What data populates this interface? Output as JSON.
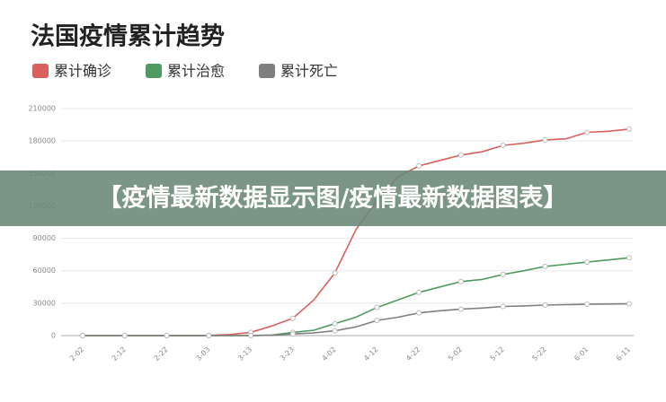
{
  "chart_data": {
    "type": "line",
    "title": "法国疫情累计趋势",
    "categories": [
      "2-02",
      null,
      "2-12",
      null,
      "2-22",
      null,
      "3-03",
      null,
      "3-13",
      null,
      "3-23",
      null,
      "4-02",
      null,
      "4-12",
      null,
      "4-22",
      null,
      "5-02",
      null,
      "5-12",
      null,
      "5-22",
      null,
      "6-01",
      null,
      "6-11"
    ],
    "series": [
      {
        "name": "累计确诊",
        "color": "#d9605c",
        "values": [
          0,
          0,
          0,
          0,
          0,
          100,
          200,
          1000,
          3000,
          9000,
          16000,
          33000,
          58000,
          98000,
          125000,
          147000,
          157000,
          162000,
          167000,
          170000,
          176000,
          178000,
          181000,
          182000,
          188000,
          189000,
          191000
        ]
      },
      {
        "name": "累计治愈",
        "color": "#4f9a60",
        "values": [
          0,
          0,
          0,
          0,
          0,
          0,
          0,
          0,
          100,
          500,
          3000,
          5000,
          11000,
          17000,
          26000,
          33000,
          40000,
          45000,
          50000,
          52000,
          56500,
          60000,
          64000,
          66000,
          68000,
          70000,
          72000
        ]
      },
      {
        "name": "累计死亡",
        "color": "#7f7f7f",
        "values": [
          0,
          0,
          0,
          0,
          0,
          0,
          0,
          0,
          100,
          300,
          1500,
          2500,
          4500,
          8000,
          14000,
          17000,
          21000,
          23000,
          24500,
          25500,
          27000,
          27500,
          28200,
          28600,
          29000,
          29200,
          29400
        ]
      }
    ],
    "ylim": [
      0,
      210000
    ],
    "yticks": [
      0,
      30000,
      60000,
      90000,
      120000,
      150000,
      180000,
      210000
    ],
    "grid": true
  },
  "banner": "【疫情最新数据显示图/疫情最新数据图表】"
}
